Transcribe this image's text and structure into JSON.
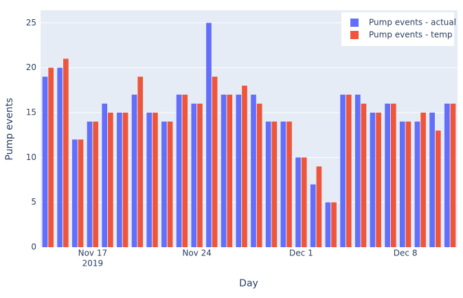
{
  "chart_data": {
    "type": "bar",
    "x_label": "Day",
    "y_label": "Pump events",
    "x": [
      "2019-11-14",
      "2019-11-15",
      "2019-11-16",
      "2019-11-17",
      "2019-11-18",
      "2019-11-19",
      "2019-11-20",
      "2019-11-21",
      "2019-11-22",
      "2019-11-23",
      "2019-11-24",
      "2019-11-25",
      "2019-11-26",
      "2019-11-27",
      "2019-11-28",
      "2019-11-29",
      "2019-11-30",
      "2019-12-01",
      "2019-12-02",
      "2019-12-03",
      "2019-12-04",
      "2019-12-05",
      "2019-12-06",
      "2019-12-07",
      "2019-12-08",
      "2019-12-09",
      "2019-12-10",
      "2019-12-11"
    ],
    "series": [
      {
        "name": "Pump events - actual",
        "color": "#636efa",
        "values": [
          19,
          20,
          12,
          14,
          16,
          15,
          17,
          15,
          14,
          17,
          16,
          25,
          17,
          17,
          17,
          14,
          14,
          10,
          7,
          5,
          17,
          17,
          15,
          16,
          14,
          14,
          15,
          16
        ]
      },
      {
        "name": "Pump events - temp",
        "color": "#ef553b",
        "values": [
          20,
          21,
          12,
          14,
          15,
          15,
          19,
          15,
          14,
          17,
          16,
          19,
          17,
          18,
          16,
          14,
          14,
          10,
          9,
          5,
          17,
          16,
          15,
          16,
          14,
          15,
          13,
          16
        ]
      }
    ],
    "xlim": [
      "2019-11-13T12:00",
      "2019-12-11T12:00"
    ],
    "xticks": [
      {
        "value": "2019-11-17",
        "label": "Nov 17"
      },
      {
        "value": "2019-11-24",
        "label": "Nov 24"
      },
      {
        "value": "2019-12-01",
        "label": "Dec 1"
      },
      {
        "value": "2019-12-08",
        "label": "Dec 8"
      }
    ],
    "x_axis_year": "2019",
    "ylim": [
      0,
      26.4
    ],
    "yticks": [
      0,
      5,
      10,
      15,
      20,
      25
    ],
    "grid": true,
    "legend": "top-right"
  }
}
